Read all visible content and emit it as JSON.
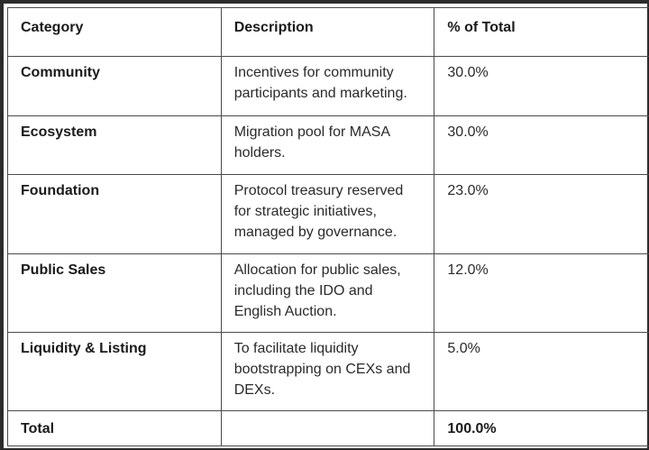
{
  "table": {
    "headers": {
      "category": "Category",
      "description": "Description",
      "percent": "% of Total"
    },
    "rows": [
      {
        "category": "Community",
        "description": "Incentives for community participants and marketing.",
        "percent": "30.0%"
      },
      {
        "category": "Ecosystem",
        "description": "Migration pool for MASA holders.",
        "percent": "30.0%"
      },
      {
        "category": "Foundation",
        "description": "Protocol treasury reserved for strategic initiatives, managed by governance.",
        "percent": "23.0%"
      },
      {
        "category": "Public Sales",
        "description": "Allocation for public sales, including the IDO and English Auction.",
        "percent": "12.0%"
      },
      {
        "category": "Liquidity & Listing",
        "description": "To facilitate liquidity bootstrapping on CEXs and DEXs.",
        "percent": "5.0%"
      }
    ],
    "total": {
      "category": "Total",
      "description": "",
      "percent": "100.0%"
    }
  }
}
